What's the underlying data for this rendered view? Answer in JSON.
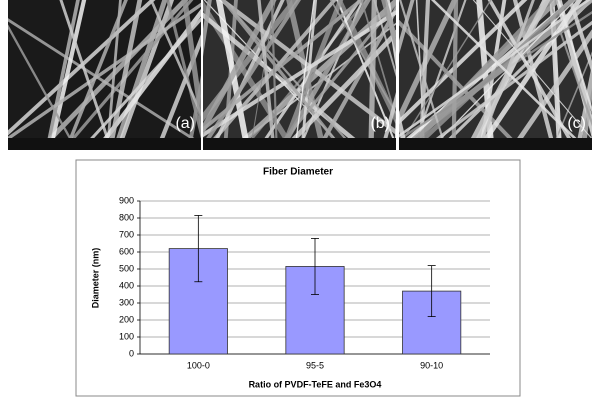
{
  "panels": [
    {
      "label": "(a)"
    },
    {
      "label": "(b)"
    },
    {
      "label": "(c)"
    }
  ],
  "chart_data": {
    "type": "bar",
    "title": "Fiber Diameter",
    "x_label": "Ratio of PVDF-TeFE and Fe3O4",
    "y_label": "Diameter (nm)",
    "categories": [
      "100-0",
      "95-5",
      "90-10"
    ],
    "values": [
      620,
      515,
      370
    ],
    "errors": [
      195,
      165,
      150
    ],
    "color": "#9999ff",
    "ylim": [
      0,
      900
    ],
    "yticks": [
      0,
      100,
      200,
      300,
      400,
      500,
      600,
      700,
      800,
      900
    ],
    "grid": true
  }
}
